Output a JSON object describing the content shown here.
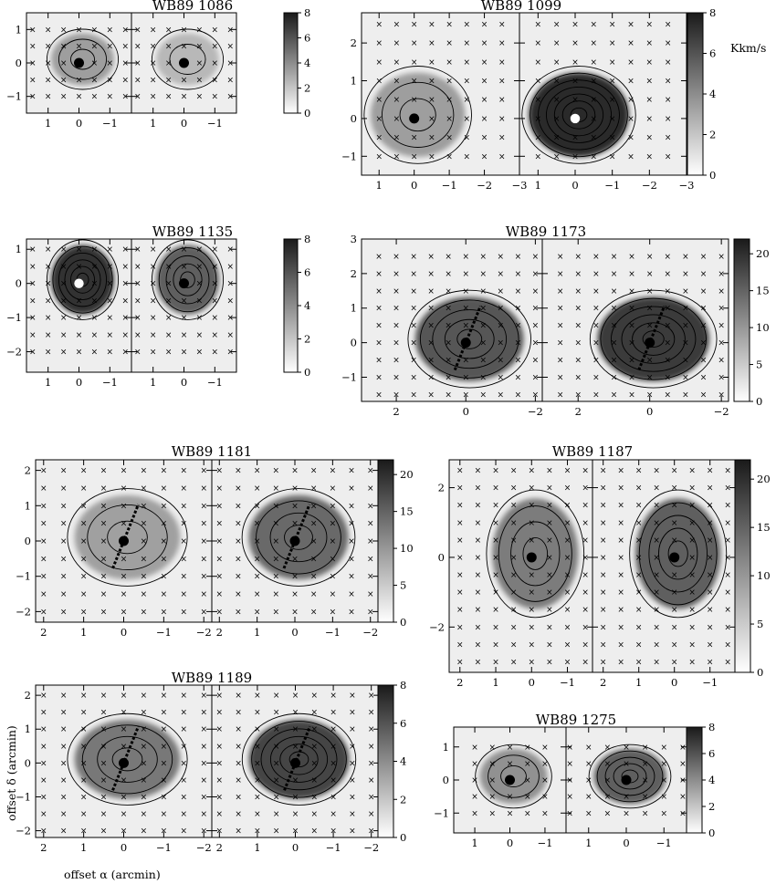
{
  "figure": {
    "unit_label": "Kkm/s",
    "x_axis_label": "offset α  (arcmin)",
    "y_axis_label": "offset δ  (arcmin)"
  },
  "chart_data": [
    {
      "type": "heatmap",
      "title": "WB89 1086",
      "sub_panels": 2,
      "xlim": [
        1.7,
        -1.7
      ],
      "ylim": [
        -1.5,
        1.5
      ],
      "x_ticks": [
        1,
        0,
        -1
      ],
      "y_ticks": [
        -1,
        0,
        1
      ],
      "colorbar": {
        "min": 0,
        "max": 8,
        "ticks": [
          0,
          2,
          4,
          6,
          8
        ]
      },
      "source_marker": [
        {
          "x": 0,
          "y": 0,
          "color": "black"
        },
        {
          "x": 0,
          "y": 0,
          "color": "black"
        }
      ],
      "peak_intensity": [
        3,
        2
      ],
      "outflow_arrow": false
    },
    {
      "type": "heatmap",
      "title": "WB89 1099",
      "sub_panels": 2,
      "xlim": [
        1.5,
        -3
      ],
      "ylim": [
        -1.5,
        2.8
      ],
      "x_ticks": [
        1,
        0,
        -1,
        -2,
        -3
      ],
      "y_ticks": [
        -1,
        0,
        1,
        2
      ],
      "colorbar": {
        "min": 0,
        "max": 8,
        "ticks": [
          0,
          2,
          4,
          6,
          8
        ]
      },
      "source_marker": [
        {
          "x": 0,
          "y": 0,
          "color": "black"
        },
        {
          "x": 0,
          "y": 0,
          "color": "white"
        }
      ],
      "peak_intensity": [
        3,
        7.5
      ],
      "outflow_arrow": false
    },
    {
      "type": "heatmap",
      "title": "WB89 1135",
      "sub_panels": 2,
      "xlim": [
        1.7,
        -1.7
      ],
      "ylim": [
        -2.6,
        1.3
      ],
      "x_ticks": [
        1,
        0,
        -1
      ],
      "y_ticks": [
        -2,
        -1,
        0,
        1
      ],
      "colorbar": {
        "min": 0,
        "max": 8,
        "ticks": [
          0,
          2,
          4,
          6,
          8
        ]
      },
      "source_marker": [
        {
          "x": 0,
          "y": 0,
          "color": "white"
        },
        {
          "x": 0,
          "y": 0,
          "color": "black"
        }
      ],
      "peak_intensity": [
        7.2,
        5.5
      ],
      "outflow_arrow": false
    },
    {
      "type": "heatmap",
      "title": "WB89 1173",
      "sub_panels": 2,
      "xlim": [
        3,
        -2.2
      ],
      "ylim": [
        -1.7,
        3
      ],
      "x_ticks": [
        2,
        0,
        -2
      ],
      "y_ticks": [
        -1,
        0,
        1,
        2,
        3
      ],
      "colorbar": {
        "min": 0,
        "max": 22,
        "ticks": [
          0,
          5,
          10,
          15,
          20
        ]
      },
      "source_marker": [
        {
          "x": 0,
          "y": 0,
          "color": "black"
        },
        {
          "x": 0,
          "y": 0,
          "color": "black"
        }
      ],
      "peak_intensity": [
        16,
        19
      ],
      "outflow_arrow": true
    },
    {
      "type": "heatmap",
      "title": "WB89 1181",
      "sub_panels": 2,
      "xlim": [
        2.2,
        -2.2
      ],
      "ylim": [
        -2.3,
        2.3
      ],
      "x_ticks": [
        2,
        1,
        0,
        -1,
        -2
      ],
      "y_ticks": [
        -2,
        -1,
        0,
        1,
        2
      ],
      "colorbar": {
        "min": 0,
        "max": 22,
        "ticks": [
          0,
          5,
          10,
          15,
          20
        ]
      },
      "source_marker": [
        {
          "x": 0,
          "y": 0,
          "color": "black"
        },
        {
          "x": 0,
          "y": 0,
          "color": "black"
        }
      ],
      "peak_intensity": [
        8,
        14
      ],
      "outflow_arrow": true
    },
    {
      "type": "heatmap",
      "title": "WB89 1187",
      "sub_panels": 2,
      "xlim": [
        2.3,
        -1.7
      ],
      "ylim": [
        -3.3,
        2.8
      ],
      "x_ticks": [
        2,
        1,
        0,
        -1
      ],
      "y_ticks": [
        -2,
        0,
        2
      ],
      "colorbar": {
        "min": 0,
        "max": 22,
        "ticks": [
          0,
          5,
          10,
          15,
          20
        ]
      },
      "source_marker": [
        {
          "x": 0,
          "y": 0,
          "color": "black"
        },
        {
          "x": 0,
          "y": 0,
          "color": "black"
        }
      ],
      "peak_intensity": [
        12,
        15
      ],
      "outflow_arrow": false
    },
    {
      "type": "heatmap",
      "title": "WB89 1189",
      "sub_panels": 2,
      "xlim": [
        2.2,
        -2.2
      ],
      "ylim": [
        -2.2,
        2.3
      ],
      "x_ticks": [
        2,
        1,
        0,
        -1,
        -2
      ],
      "y_ticks": [
        -2,
        -1,
        0,
        1,
        2
      ],
      "colorbar": {
        "min": 0,
        "max": 8,
        "ticks": [
          0,
          2,
          4,
          6,
          8
        ]
      },
      "source_marker": [
        {
          "x": 0,
          "y": 0,
          "color": "black"
        },
        {
          "x": 0,
          "y": 0,
          "color": "black"
        }
      ],
      "peak_intensity": [
        4.5,
        6.5
      ],
      "outflow_arrow": true
    },
    {
      "type": "heatmap",
      "title": "WB89 1275",
      "sub_panels": 2,
      "xlim": [
        1.6,
        -1.6
      ],
      "ylim": [
        -1.6,
        1.6
      ],
      "x_ticks": [
        1,
        0,
        -1
      ],
      "y_ticks": [
        -1,
        0,
        1
      ],
      "colorbar": {
        "min": 0,
        "max": 8,
        "ticks": [
          0,
          2,
          4,
          6,
          8
        ]
      },
      "source_marker": [
        {
          "x": 0,
          "y": 0,
          "color": "black"
        },
        {
          "x": 0,
          "y": 0,
          "color": "black"
        }
      ],
      "peak_intensity": [
        3.5,
        5.5
      ],
      "outflow_arrow": false
    }
  ]
}
